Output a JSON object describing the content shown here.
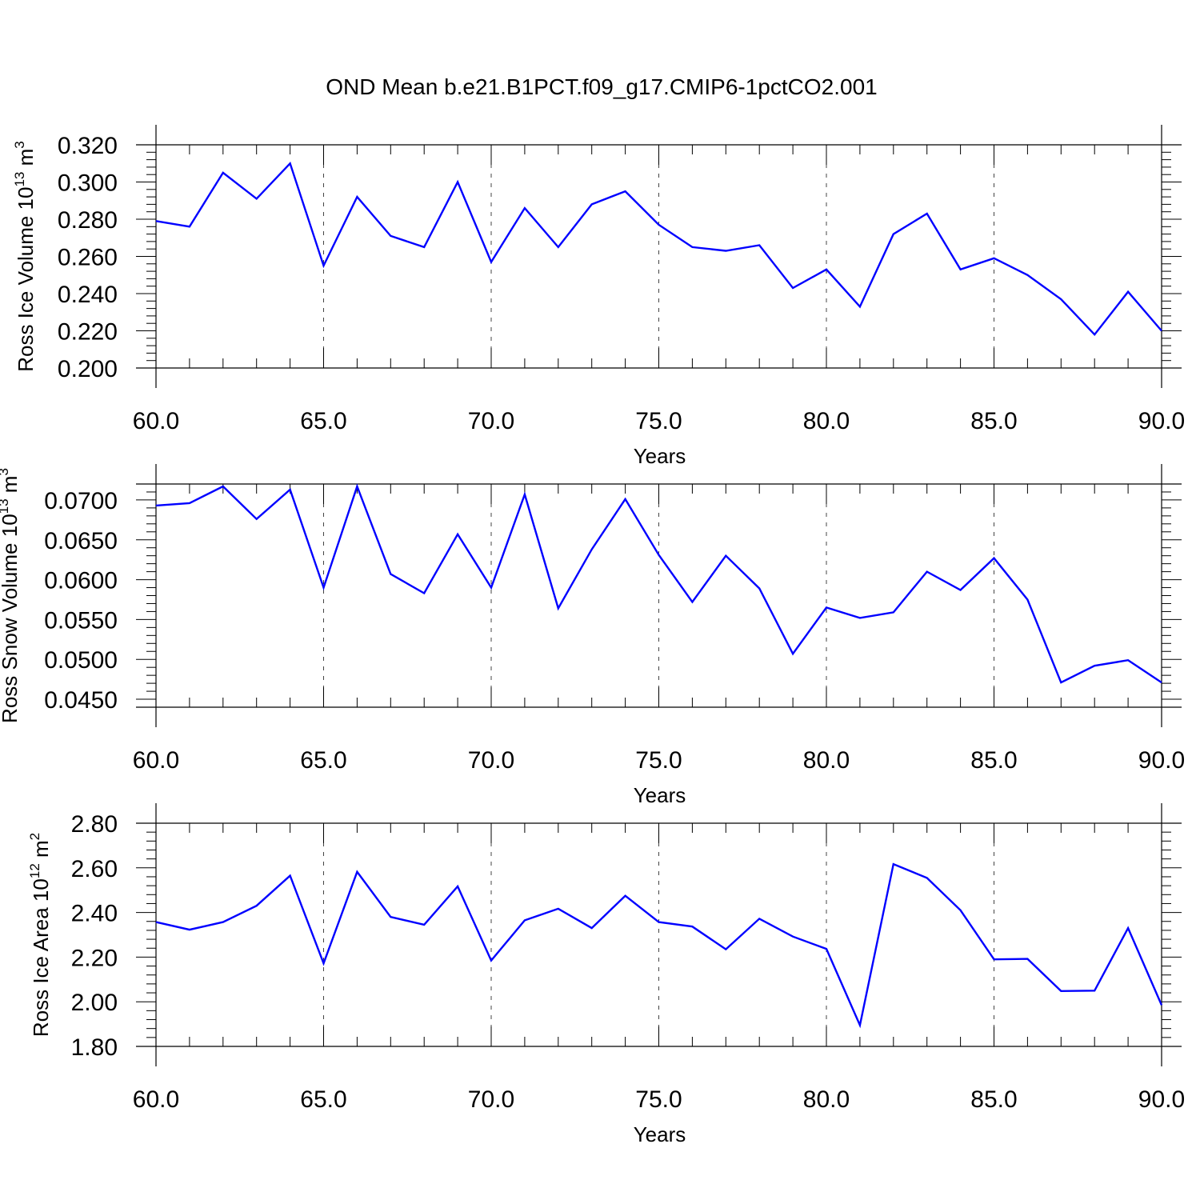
{
  "figure_title": "OND Mean b.e21.B1PCT.f09_g17.CMIP6-1pctCO2.001",
  "colors": {
    "line": "#0000ff",
    "axis": "#000000",
    "grid": "#444444"
  },
  "chart_data": [
    {
      "type": "line",
      "xlabel": "Years",
      "ylabel": "Ross Ice Volume 10^13 m^3",
      "ylabel_parts": {
        "pre": "Ross Ice Volume 10",
        "sup1": "13",
        "mid": " m",
        "sup2": "3"
      },
      "xlim": [
        60,
        90
      ],
      "ylim": [
        0.2,
        0.32
      ],
      "x_ticks": [
        "60.0",
        "65.0",
        "70.0",
        "75.0",
        "80.0",
        "85.0",
        "90.0"
      ],
      "y_ticks": [
        "0.200",
        "0.220",
        "0.240",
        "0.260",
        "0.280",
        "0.300",
        "0.320"
      ],
      "grid": "vertical dashed at x major ticks",
      "x": [
        60,
        61,
        62,
        63,
        64,
        65,
        66,
        67,
        68,
        69,
        70,
        71,
        72,
        73,
        74,
        75,
        76,
        77,
        78,
        79,
        80,
        81,
        82,
        83,
        84,
        85,
        86,
        87,
        88,
        89,
        90
      ],
      "series": [
        {
          "values": [
            0.279,
            0.276,
            0.305,
            0.291,
            0.31,
            0.255,
            0.292,
            0.271,
            0.265,
            0.3,
            0.257,
            0.286,
            0.265,
            0.288,
            0.295,
            0.277,
            0.265,
            0.263,
            0.266,
            0.243,
            0.253,
            0.233,
            0.272,
            0.283,
            0.253,
            0.259,
            0.25,
            0.237,
            0.218,
            0.241,
            0.22
          ]
        }
      ]
    },
    {
      "type": "line",
      "xlabel": "Years",
      "ylabel": "Ross Snow Volume 10^13 m^3",
      "ylabel_parts": {
        "pre": "Ross Snow Volume 10",
        "sup1": "13",
        "mid": " m",
        "sup2": "3"
      },
      "xlim": [
        60,
        90
      ],
      "ylim": [
        0.044,
        0.072
      ],
      "x_ticks": [
        "60.0",
        "65.0",
        "70.0",
        "75.0",
        "80.0",
        "85.0",
        "90.0"
      ],
      "y_ticks": [
        "0.0450",
        "0.0500",
        "0.0550",
        "0.0600",
        "0.0650",
        "0.0700"
      ],
      "grid": "vertical dashed at x major ticks",
      "x": [
        60,
        61,
        62,
        63,
        64,
        65,
        66,
        67,
        68,
        69,
        70,
        71,
        72,
        73,
        74,
        75,
        76,
        77,
        78,
        79,
        80,
        81,
        82,
        83,
        84,
        85,
        86,
        87,
        88,
        89,
        90
      ],
      "series": [
        {
          "values": [
            0.0693,
            0.0696,
            0.0717,
            0.0676,
            0.0713,
            0.059,
            0.0717,
            0.0607,
            0.0583,
            0.0657,
            0.059,
            0.0707,
            0.0564,
            0.0638,
            0.0701,
            0.0631,
            0.0572,
            0.063,
            0.0589,
            0.0507,
            0.0565,
            0.0552,
            0.0559,
            0.061,
            0.0587,
            0.0627,
            0.0575,
            0.0471,
            0.0492,
            0.0499,
            0.0471
          ]
        }
      ]
    },
    {
      "type": "line",
      "xlabel": "Years",
      "ylabel": "Ross Ice Area 10^12 m^2",
      "ylabel_parts": {
        "pre": "Ross Ice Area 10",
        "sup1": "12",
        "mid": " m",
        "sup2": "2"
      },
      "xlim": [
        60,
        90
      ],
      "ylim": [
        1.8,
        2.8
      ],
      "x_ticks": [
        "60.0",
        "65.0",
        "70.0",
        "75.0",
        "80.0",
        "85.0",
        "90.0"
      ],
      "y_ticks": [
        "1.80",
        "2.00",
        "2.20",
        "2.40",
        "2.60",
        "2.80"
      ],
      "grid": "vertical dashed at x major ticks",
      "x": [
        60,
        61,
        62,
        63,
        64,
        65,
        66,
        67,
        68,
        69,
        70,
        71,
        72,
        73,
        74,
        75,
        76,
        77,
        78,
        79,
        80,
        81,
        82,
        83,
        84,
        85,
        86,
        87,
        88,
        89,
        90
      ],
      "series": [
        {
          "values": [
            2.357,
            2.323,
            2.357,
            2.43,
            2.565,
            2.172,
            2.582,
            2.38,
            2.345,
            2.517,
            2.185,
            2.365,
            2.417,
            2.33,
            2.475,
            2.357,
            2.337,
            2.235,
            2.372,
            2.292,
            2.237,
            1.895,
            2.617,
            2.555,
            2.41,
            2.19,
            2.192,
            2.048,
            2.05,
            2.33,
            1.985
          ]
        }
      ]
    }
  ]
}
